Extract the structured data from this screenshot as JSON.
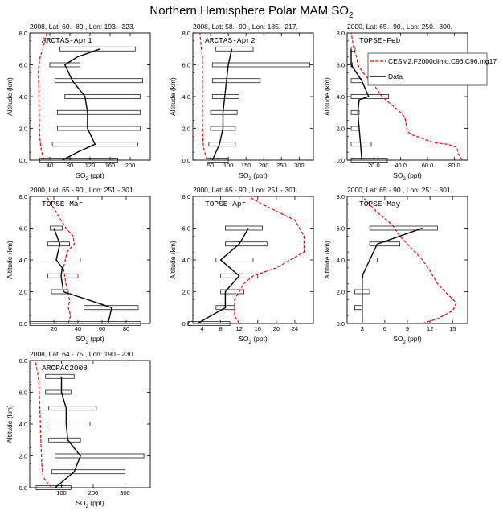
{
  "figure": {
    "title": "Northern Hemisphere Polar MAM SO",
    "title_sub": "2",
    "colors": {
      "model": "#ff0000",
      "data": "#000000",
      "box": "#000000"
    }
  },
  "chart_data": [
    {
      "type": "line",
      "header": "2008, Lat:  60.- 89., Lon: 193.- 323.",
      "site": "ARCTAS-Apr1",
      "ylabel": "Altitude (km)",
      "xlabel": "SO",
      "xlabel_sub": "2",
      "xlabel_unit": " (ppt)",
      "xlim": [
        0,
        240
      ],
      "xticks": [
        40,
        80,
        120,
        160,
        200
      ],
      "ylim": [
        0,
        8
      ],
      "yticks": [
        0,
        2,
        4,
        6,
        8
      ],
      "altitudes": [
        0,
        1,
        2,
        3,
        4,
        5,
        6,
        7
      ],
      "model": [
        [
          28,
          0.0
        ],
        [
          25,
          0.4
        ],
        [
          22,
          0.8
        ],
        [
          20,
          1.5
        ],
        [
          19,
          2.5
        ],
        [
          18,
          3.5
        ],
        [
          18,
          4.5
        ],
        [
          17,
          5.5
        ],
        [
          18,
          6.0
        ],
        [
          21,
          6.5
        ],
        [
          26,
          7.0
        ],
        [
          30,
          7.5
        ],
        [
          34,
          8.0
        ]
      ],
      "data": [
        [
          65,
          0.0
        ],
        [
          95,
          0.5
        ],
        [
          130,
          1.0
        ],
        [
          115,
          2.0
        ],
        [
          115,
          3.0
        ],
        [
          110,
          4.0
        ],
        [
          85,
          5.0
        ],
        [
          70,
          6.0
        ],
        [
          95,
          6.5
        ],
        [
          140,
          7.0
        ]
      ],
      "boxes": [
        [
          20,
          175,
          0.0
        ],
        [
          45,
          215,
          1.0
        ],
        [
          55,
          220,
          2.0
        ],
        [
          55,
          220,
          3.0
        ],
        [
          70,
          220,
          4.0
        ],
        [
          50,
          225,
          5.0
        ],
        [
          40,
          100,
          6.0
        ],
        [
          60,
          210,
          7.0
        ]
      ]
    },
    {
      "type": "line",
      "header": "2008, Lat:  58.- 90., Lon: 185.- 217.",
      "site": "ARCTAS-Apr2",
      "ylabel": "Altitude (km)",
      "xlabel": "SO",
      "xlabel_sub": "2",
      "xlabel_unit": " (ppt)",
      "xlim": [
        0,
        340
      ],
      "xticks": [
        50,
        100,
        150,
        200,
        250,
        300
      ],
      "ylim": [
        0,
        8
      ],
      "yticks": [
        0,
        2,
        4,
        6,
        8
      ],
      "altitudes": [
        0,
        1,
        2,
        3,
        4,
        5,
        6,
        7
      ],
      "model": [
        [
          40,
          0.0
        ],
        [
          35,
          0.4
        ],
        [
          30,
          0.8
        ],
        [
          28,
          1.5
        ],
        [
          27,
          2.5
        ],
        [
          27,
          3.5
        ],
        [
          27,
          4.5
        ],
        [
          27,
          5.5
        ],
        [
          27,
          6.0
        ],
        [
          27,
          6.5
        ],
        [
          24,
          7.0
        ],
        [
          22,
          7.5
        ],
        [
          20,
          8.0
        ]
      ],
      "data": [
        [
          55,
          0.0
        ],
        [
          65,
          0.5
        ],
        [
          75,
          1.0
        ],
        [
          85,
          2.0
        ],
        [
          85,
          3.0
        ],
        [
          90,
          4.0
        ],
        [
          95,
          5.0
        ],
        [
          100,
          6.0
        ],
        [
          110,
          7.0
        ]
      ],
      "boxes": [
        [
          40,
          100,
          0.0
        ],
        [
          45,
          120,
          1.0
        ],
        [
          50,
          120,
          2.0
        ],
        [
          50,
          125,
          3.0
        ],
        [
          55,
          130,
          4.0
        ],
        [
          55,
          190,
          5.0
        ],
        [
          55,
          330,
          6.0
        ],
        [
          65,
          170,
          7.0
        ]
      ]
    },
    {
      "type": "line",
      "header": "2000, Lat:  65.- 90., Lon: 250.- 300.",
      "site": "TOPSE-Feb",
      "ylabel": "Altitude (km)",
      "xlabel": "SO",
      "xlabel_sub": "2",
      "xlabel_unit": " (ppt)",
      "xlim": [
        0,
        90
      ],
      "xticks": [
        20,
        40,
        60,
        80
      ],
      "ylim": [
        0,
        8
      ],
      "yticks": [
        0,
        2,
        4,
        6,
        8
      ],
      "altitudes": [
        0,
        1,
        2,
        3,
        4,
        5,
        6,
        7
      ],
      "legend": {
        "model": "CESM2.F2000climo.C96.C96.mg17",
        "data": "Data"
      },
      "model": [
        [
          86,
          0.0
        ],
        [
          83,
          0.4
        ],
        [
          82,
          0.8
        ],
        [
          75,
          1.0
        ],
        [
          65,
          1.1
        ],
        [
          58,
          1.3
        ],
        [
          52,
          1.5
        ],
        [
          48,
          1.6
        ],
        [
          45,
          1.8
        ],
        [
          44,
          2.3
        ],
        [
          43,
          2.7
        ],
        [
          40,
          3.0
        ],
        [
          33,
          3.5
        ],
        [
          26,
          4.0
        ],
        [
          22,
          4.5
        ],
        [
          17,
          5.0
        ],
        [
          12,
          5.5
        ],
        [
          8,
          6.0
        ],
        [
          7,
          6.5
        ],
        [
          5,
          7.0
        ],
        [
          4,
          7.5
        ],
        [
          3,
          8.0
        ]
      ],
      "data": [
        [
          11,
          0.0
        ],
        [
          10,
          1.0
        ],
        [
          9,
          2.0
        ],
        [
          8,
          3.0
        ],
        [
          9,
          3.8
        ],
        [
          16,
          4.0
        ],
        [
          11,
          5.0
        ],
        [
          3,
          6.0
        ],
        [
          3,
          6.8
        ],
        [
          3,
          7.0
        ]
      ],
      "boxes": [
        [
          3,
          30,
          0.0
        ],
        [
          3,
          18,
          1.0
        ],
        [
          3,
          9,
          2.0
        ],
        [
          3,
          9,
          3.0
        ],
        [
          3,
          31,
          4.0
        ],
        [
          3,
          11,
          5.0
        ],
        [
          3,
          4,
          6.0
        ],
        [
          3,
          6,
          7.0
        ]
      ]
    },
    {
      "type": "line",
      "header": "2000, Lat:  65.- 90., Lon: 251.- 301.",
      "site": "TOPSE-Mar",
      "ylabel": "Altitude (km)",
      "xlabel": "SO",
      "xlabel_sub": "2",
      "xlabel_unit": " (ppt)",
      "xlim": [
        0,
        100
      ],
      "xticks": [
        20,
        40,
        60,
        80
      ],
      "ylim": [
        0,
        8
      ],
      "yticks": [
        0,
        2,
        4,
        6,
        8
      ],
      "altitudes": [
        0,
        1,
        2,
        3,
        4,
        5,
        6,
        7
      ],
      "model": [
        [
          32,
          0.0
        ],
        [
          34,
          0.5
        ],
        [
          32,
          1.0
        ],
        [
          33,
          1.5
        ],
        [
          30,
          2.5
        ],
        [
          28,
          3.5
        ],
        [
          31,
          4.5
        ],
        [
          37,
          5.0
        ],
        [
          36,
          5.5
        ],
        [
          30,
          6.0
        ],
        [
          22,
          7.0
        ],
        [
          14,
          8.0
        ]
      ],
      "data": [
        [
          65,
          0.0
        ],
        [
          68,
          1.0
        ],
        [
          28,
          2.0
        ],
        [
          26,
          3.0
        ],
        [
          27,
          3.5
        ],
        [
          22,
          4.0
        ],
        [
          25,
          5.0
        ],
        [
          20,
          6.0
        ]
      ],
      "boxes": [
        [
          0,
          92,
          0.0
        ],
        [
          45,
          90,
          1.0
        ],
        [
          18,
          32,
          2.0
        ],
        [
          15,
          40,
          3.0
        ],
        [
          0,
          42,
          4.0
        ],
        [
          15,
          33,
          5.0
        ],
        [
          17,
          27,
          6.0
        ]
      ]
    },
    {
      "type": "line",
      "header": "2000, Lat:  65.- 90., Lon: 251.- 301.",
      "site": "TOPSE-Apr",
      "ylabel": "Altitude (km)",
      "xlabel": "SO",
      "xlabel_sub": "2",
      "xlabel_unit": " (ppt)",
      "xlim": [
        2,
        28
      ],
      "xticks": [
        4,
        8,
        12,
        16,
        20,
        24
      ],
      "ylim": [
        0,
        8
      ],
      "yticks": [
        0,
        2,
        4,
        6,
        8
      ],
      "altitudes": [
        0,
        1,
        2,
        3,
        4,
        5,
        6,
        7
      ],
      "model": [
        [
          12,
          0.0
        ],
        [
          11,
          0.5
        ],
        [
          11,
          1.5
        ],
        [
          13,
          2.5
        ],
        [
          15,
          3.0
        ],
        [
          20,
          3.5
        ],
        [
          26,
          4.5
        ],
        [
          26,
          5.5
        ],
        [
          24,
          6.5
        ],
        [
          17,
          7.5
        ],
        [
          14,
          8.0
        ]
      ],
      "data": [
        [
          3,
          0.0
        ],
        [
          9,
          1.0
        ],
        [
          9,
          2.0
        ],
        [
          12,
          3.0
        ],
        [
          8,
          4.0
        ],
        [
          12,
          5.0
        ],
        [
          14,
          6.0
        ]
      ],
      "boxes": [
        [
          1,
          10,
          0.0
        ],
        [
          7,
          11,
          1.0
        ],
        [
          8,
          13,
          2.0
        ],
        [
          8,
          16,
          3.0
        ],
        [
          7,
          15,
          4.0
        ],
        [
          9,
          18,
          5.0
        ],
        [
          9,
          17,
          6.0
        ]
      ]
    },
    {
      "type": "line",
      "header": "2000, Lat:  65.- 90., Lon: 251.- 301.",
      "site": "TOPSE-May",
      "ylabel": "Altitude (km)",
      "xlabel": "SO",
      "xlabel_sub": "2",
      "xlabel_unit": " (ppt)",
      "xlim": [
        1,
        17
      ],
      "xticks": [
        3,
        6,
        9,
        12,
        15
      ],
      "ylim": [
        0,
        8
      ],
      "yticks": [
        0,
        2,
        4,
        6,
        8
      ],
      "altitudes": [
        0,
        1,
        2,
        3,
        4,
        5,
        6,
        7
      ],
      "model": [
        [
          11,
          0.0
        ],
        [
          13,
          0.3
        ],
        [
          15,
          0.8
        ],
        [
          15.5,
          1.3
        ],
        [
          14,
          2.0
        ],
        [
          13,
          2.5
        ],
        [
          12,
          3.3
        ],
        [
          11,
          4.0
        ],
        [
          10,
          4.5
        ],
        [
          9,
          5.0
        ],
        [
          8,
          5.5
        ],
        [
          7,
          6.2
        ],
        [
          5,
          7.0
        ],
        [
          4,
          7.5
        ],
        [
          3,
          8.0
        ]
      ],
      "data": [
        [
          3,
          0.0
        ],
        [
          3,
          1.0
        ],
        [
          3,
          2.0
        ],
        [
          3,
          3.0
        ],
        [
          4,
          4.0
        ],
        [
          5,
          5.0
        ],
        [
          11,
          6.0
        ]
      ],
      "boxes": [
        [
          2,
          3,
          1.0
        ],
        [
          2,
          4,
          2.0
        ],
        [
          3,
          3,
          3.0
        ],
        [
          4,
          5,
          4.0
        ],
        [
          4,
          8,
          5.0
        ],
        [
          4,
          13,
          6.0
        ]
      ]
    },
    {
      "type": "line",
      "header": "2008, Lat:  64.- 75., Lon: 190.- 230.",
      "site": "ARCPAC2008",
      "ylabel": "Altitude (km)",
      "xlabel": "SO",
      "xlabel_sub": "2",
      "xlabel_unit": " (ppt)",
      "xlim": [
        0,
        380
      ],
      "xticks": [
        100,
        200,
        300
      ],
      "ylim": [
        0,
        8
      ],
      "yticks": [
        0,
        2,
        4,
        6,
        8
      ],
      "altitudes": [
        0,
        1,
        2,
        3,
        4,
        5,
        6,
        7
      ],
      "model": [
        [
          70,
          0.0
        ],
        [
          55,
          0.3
        ],
        [
          42,
          0.7
        ],
        [
          38,
          1.5
        ],
        [
          36,
          2.5
        ],
        [
          34,
          3.5
        ],
        [
          33,
          4.5
        ],
        [
          31,
          5.5
        ],
        [
          29,
          6.5
        ],
        [
          27,
          7.0
        ],
        [
          22,
          7.5
        ],
        [
          18,
          8.0
        ]
      ],
      "data": [
        [
          80,
          0.0
        ],
        [
          140,
          1.0
        ],
        [
          160,
          2.0
        ],
        [
          120,
          3.0
        ],
        [
          115,
          4.0
        ],
        [
          115,
          5.0
        ],
        [
          100,
          6.0
        ],
        [
          100,
          7.0
        ]
      ],
      "boxes": [
        [
          20,
          130,
          0.0
        ],
        [
          70,
          300,
          1.0
        ],
        [
          80,
          360,
          2.0
        ],
        [
          60,
          160,
          3.0
        ],
        [
          55,
          190,
          4.0
        ],
        [
          60,
          210,
          5.0
        ],
        [
          50,
          130,
          6.0
        ],
        [
          50,
          140,
          7.0
        ]
      ]
    }
  ]
}
